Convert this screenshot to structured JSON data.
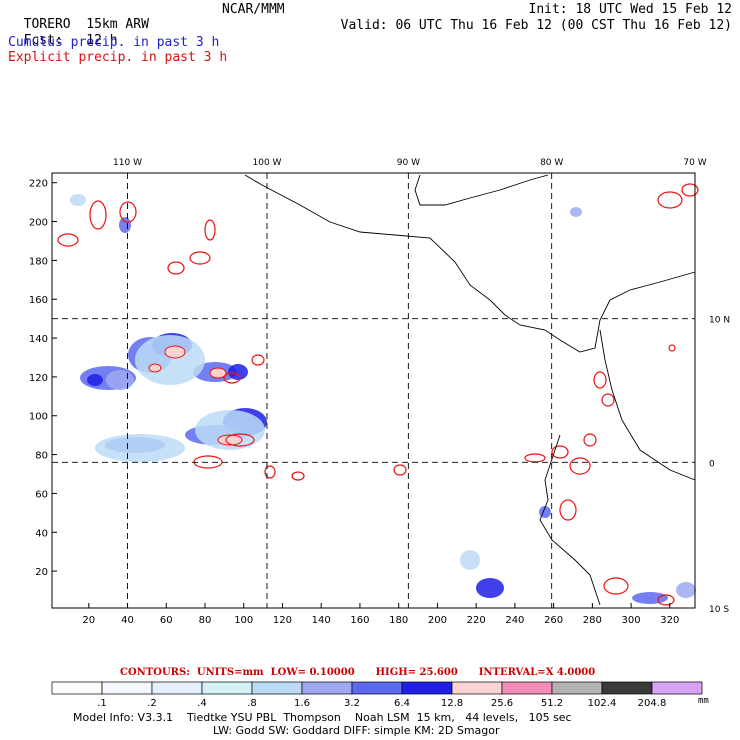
{
  "header": {
    "model": "TORERO",
    "resolution": "15km ARW",
    "center": "NCAR/MMM",
    "init": "Init: 18 UTC Wed 15 Feb 12",
    "fcst_label": "Fcst:",
    "fcst_value": "12 h",
    "valid": "Valid: 06 UTC Thu 16 Feb 12 (00 CST Thu 16 Feb 12)",
    "field1": "Cumulus precip. in past 3 h",
    "field2": "Explicit precip. in past 3 h"
  },
  "chart_data": {
    "type": "heatmap",
    "title": "Cumulus precip. in past 3 h / Explicit precip. in past 3 h",
    "x_axis": {
      "ticks": [
        20,
        40,
        60,
        80,
        100,
        120,
        140,
        160,
        180,
        200,
        220,
        240,
        260,
        280,
        300,
        320
      ],
      "range": [
        1,
        333
      ]
    },
    "y_axis": {
      "ticks": [
        20,
        40,
        60,
        80,
        100,
        120,
        140,
        160,
        180,
        200,
        220
      ],
      "range": [
        1,
        225
      ]
    },
    "longitudes": [
      {
        "label": "110 W",
        "x": 40
      },
      {
        "label": "100 W",
        "x": 112
      },
      {
        "label": "90 W",
        "x": 185
      },
      {
        "label": "80 W",
        "x": 259
      },
      {
        "label": "70 W",
        "x": 333
      }
    ],
    "latitudes": [
      {
        "label": "10 N",
        "y": 150
      },
      {
        "label": "0",
        "y": 76
      },
      {
        "label": "10 S",
        "y": 1
      }
    ],
    "contours": {
      "label": "CONTOURS:",
      "units": "UNITS=mm",
      "low": "LOW= 0.10000",
      "high": "HIGH= 25.600",
      "interval": "INTERVAL=X 4.0000"
    },
    "colorbar": {
      "labels": [
        ".1",
        ".2",
        ".4",
        ".8",
        "1.6",
        "3.2",
        "6.4",
        "12.8",
        "25.6",
        "51.2",
        "102.4",
        "204.8"
      ],
      "colors": [
        "#ffffff",
        "#f4f7fd",
        "#e6efff",
        "#d2f2f6",
        "#bcdcf6",
        "#9fa9f2",
        "#5c6aef",
        "#1f1fe8",
        "#fcd3d3",
        "#f38cb7",
        "#b3b3b3",
        "#3a3a3a",
        "#d9a3f5"
      ],
      "unit": "mm"
    }
  },
  "footer": {
    "line1": "Model Info: V3.3.1    Tiedtke YSU PBL  Thompson    Noah LSM  15 km,   44 levels,   105 sec",
    "line2": "LW: Godd SW: Goddard DIFF: simple KM: 2D Smagor"
  }
}
